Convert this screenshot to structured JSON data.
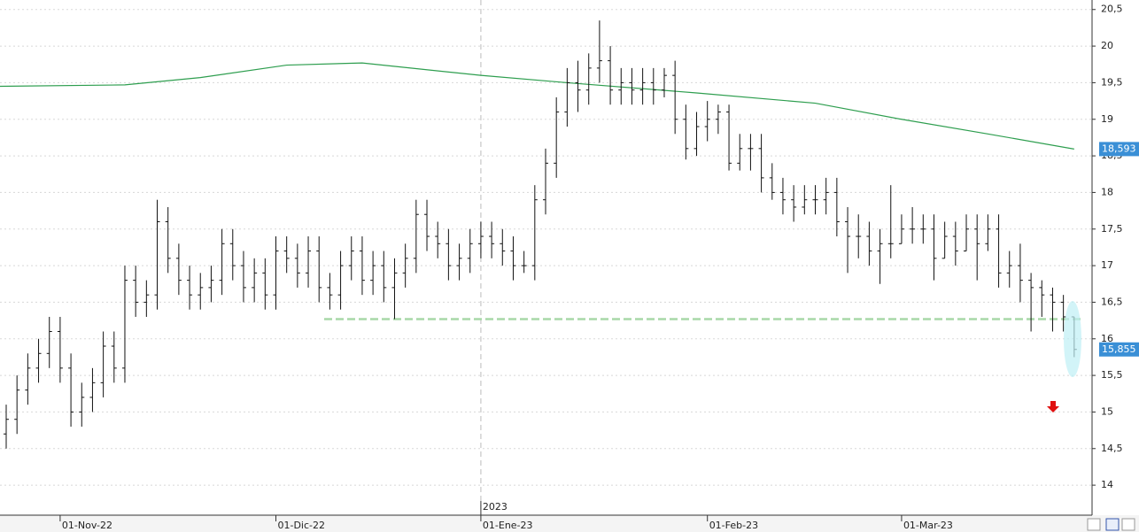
{
  "chart_data": {
    "type": "ohlc",
    "categories": [
      null,
      null,
      null,
      null,
      null,
      "01-Nov-22",
      null,
      null,
      null,
      null,
      null,
      null,
      null,
      null,
      null,
      null,
      null,
      null,
      null,
      null,
      null,
      null,
      null,
      null,
      null,
      "01-Dic-22",
      null,
      null,
      null,
      null,
      null,
      null,
      null,
      null,
      null,
      null,
      null,
      null,
      null,
      null,
      null,
      null,
      null,
      null,
      "01-Ene-23",
      null,
      null,
      null,
      null,
      null,
      null,
      null,
      null,
      null,
      null,
      null,
      null,
      null,
      null,
      null,
      null,
      null,
      null,
      null,
      null,
      "01-Feb-23",
      null,
      null,
      null,
      null,
      null,
      null,
      null,
      null,
      null,
      null,
      null,
      null,
      null,
      null,
      null,
      null,
      null,
      "01-Mar-23",
      null,
      null,
      null,
      null,
      null,
      null,
      null,
      null,
      null,
      null,
      null,
      null,
      null,
      null,
      null,
      null
    ],
    "year_label": "2023",
    "color": "#111111",
    "open": [
      14.7,
      14.9,
      15.3,
      15.6,
      15.8,
      16.1,
      15.6,
      15.0,
      15.2,
      15.4,
      15.9,
      15.6,
      16.8,
      16.5,
      16.6,
      17.6,
      17.1,
      16.8,
      16.6,
      16.7,
      16.8,
      17.3,
      17.0,
      16.7,
      16.9,
      16.6,
      17.2,
      17.1,
      16.9,
      17.2,
      16.7,
      16.6,
      17.0,
      17.2,
      16.8,
      17.0,
      16.7,
      16.9,
      17.1,
      17.7,
      17.4,
      17.3,
      17.0,
      17.1,
      17.3,
      17.4,
      17.3,
      17.2,
      17.0,
      17.0,
      17.9,
      18.4,
      19.1,
      19.5,
      19.4,
      19.7,
      19.8,
      19.4,
      19.5,
      19.4,
      19.5,
      19.4,
      19.6,
      19.0,
      18.6,
      18.9,
      19.0,
      19.1,
      18.4,
      18.6,
      18.6,
      18.2,
      18.0,
      17.9,
      17.8,
      17.9,
      17.9,
      18.0,
      17.6,
      17.4,
      17.4,
      17.2,
      17.3,
      17.3,
      17.5,
      17.5,
      17.5,
      17.1,
      17.4,
      17.2,
      17.5,
      17.3,
      17.5,
      16.9,
      17.0,
      16.8,
      16.7,
      16.6,
      16.5,
      16.3
    ],
    "high": [
      15.1,
      15.5,
      15.8,
      16.0,
      16.3,
      16.3,
      15.8,
      15.4,
      15.6,
      16.1,
      16.1,
      17.0,
      17.0,
      16.8,
      17.9,
      17.8,
      17.3,
      17.0,
      16.9,
      17.0,
      17.5,
      17.5,
      17.2,
      17.1,
      17.1,
      17.4,
      17.4,
      17.3,
      17.4,
      17.4,
      16.9,
      17.2,
      17.4,
      17.4,
      17.2,
      17.2,
      17.1,
      17.3,
      17.9,
      17.9,
      17.6,
      17.5,
      17.3,
      17.5,
      17.6,
      17.6,
      17.5,
      17.4,
      17.2,
      18.1,
      18.6,
      19.3,
      19.7,
      19.8,
      19.9,
      20.35,
      20.0,
      19.7,
      19.7,
      19.7,
      19.7,
      19.7,
      19.8,
      19.2,
      19.1,
      19.25,
      19.2,
      19.2,
      18.8,
      18.8,
      18.8,
      18.4,
      18.2,
      18.1,
      18.1,
      18.1,
      18.2,
      18.2,
      17.8,
      17.7,
      17.6,
      17.5,
      18.1,
      17.7,
      17.8,
      17.7,
      17.7,
      17.6,
      17.6,
      17.7,
      17.7,
      17.7,
      17.7,
      17.2,
      17.3,
      16.9,
      16.8,
      16.7,
      16.6,
      16.3
    ],
    "low": [
      14.5,
      14.7,
      15.1,
      15.4,
      15.6,
      15.4,
      14.8,
      14.8,
      15.0,
      15.2,
      15.4,
      15.4,
      16.3,
      16.3,
      16.4,
      16.9,
      16.6,
      16.4,
      16.4,
      16.5,
      16.6,
      16.8,
      16.5,
      16.5,
      16.4,
      16.4,
      16.9,
      16.7,
      16.7,
      16.5,
      16.4,
      16.4,
      16.8,
      16.6,
      16.6,
      16.5,
      16.27,
      16.7,
      16.9,
      17.2,
      17.1,
      16.8,
      16.8,
      16.9,
      17.1,
      17.1,
      17.0,
      16.8,
      16.9,
      16.8,
      17.7,
      18.2,
      18.9,
      19.1,
      19.2,
      19.5,
      19.2,
      19.2,
      19.2,
      19.2,
      19.2,
      19.3,
      18.8,
      18.45,
      18.5,
      18.7,
      18.8,
      18.3,
      18.3,
      18.3,
      18.0,
      17.9,
      17.7,
      17.6,
      17.7,
      17.7,
      17.7,
      17.4,
      16.9,
      17.1,
      17.0,
      16.75,
      17.1,
      17.3,
      17.3,
      17.3,
      16.8,
      17.1,
      17.0,
      17.2,
      16.8,
      17.2,
      16.7,
      16.7,
      16.5,
      16.1,
      16.3,
      16.1,
      16.1,
      15.75
    ],
    "close": [
      14.9,
      15.3,
      15.6,
      15.8,
      16.1,
      15.6,
      15.0,
      15.2,
      15.4,
      15.9,
      15.6,
      16.8,
      16.5,
      16.6,
      17.6,
      17.1,
      16.8,
      16.6,
      16.7,
      16.8,
      17.3,
      17.0,
      16.7,
      16.9,
      16.6,
      17.2,
      17.1,
      16.9,
      17.2,
      16.7,
      16.6,
      17.0,
      17.2,
      16.8,
      17.0,
      16.7,
      16.9,
      17.1,
      17.7,
      17.4,
      17.3,
      17.0,
      17.1,
      17.3,
      17.4,
      17.3,
      17.2,
      17.0,
      17.0,
      17.9,
      18.4,
      19.1,
      19.5,
      19.4,
      19.7,
      19.8,
      19.4,
      19.5,
      19.4,
      19.5,
      19.4,
      19.6,
      19.0,
      18.6,
      18.9,
      19.0,
      19.1,
      18.4,
      18.6,
      18.6,
      18.2,
      18.0,
      17.9,
      17.8,
      17.9,
      17.9,
      18.0,
      17.6,
      17.4,
      17.4,
      17.2,
      17.3,
      17.3,
      17.5,
      17.5,
      17.5,
      17.1,
      17.4,
      17.2,
      17.5,
      17.3,
      17.5,
      16.9,
      17.0,
      16.8,
      16.7,
      16.6,
      16.5,
      16.3,
      15.855
    ],
    "last_label": "15,855",
    "last_label_color": "#3a8fd6",
    "moving_average": {
      "color": "#2e9e4f",
      "x": [
        -1,
        11,
        18,
        26,
        33,
        44,
        52,
        64,
        75,
        83,
        91,
        99
      ],
      "values": [
        19.45,
        19.47,
        19.57,
        19.74,
        19.77,
        19.6,
        19.5,
        19.36,
        19.22,
        19.0,
        18.8,
        18.593
      ],
      "value_label": "18,593"
    },
    "reference_line": {
      "value": 16.27,
      "color": "#a8d8a8"
    },
    "ylim": [
      13.59,
      20.63
    ],
    "yticks": [
      14,
      {
        "value": 14.5,
        "label": "14,5"
      },
      15,
      {
        "value": 15.5,
        "label": "15,5"
      },
      16,
      {
        "value": 16.5,
        "label": "16,5"
      },
      17,
      {
        "value": 17.5,
        "label": "17,5"
      },
      18,
      {
        "value": 18.5,
        "label": "18,5"
      },
      19,
      {
        "value": 19.5,
        "label": "19,5"
      },
      20,
      {
        "value": 20.5,
        "label": "20,5"
      }
    ],
    "grid": true
  }
}
